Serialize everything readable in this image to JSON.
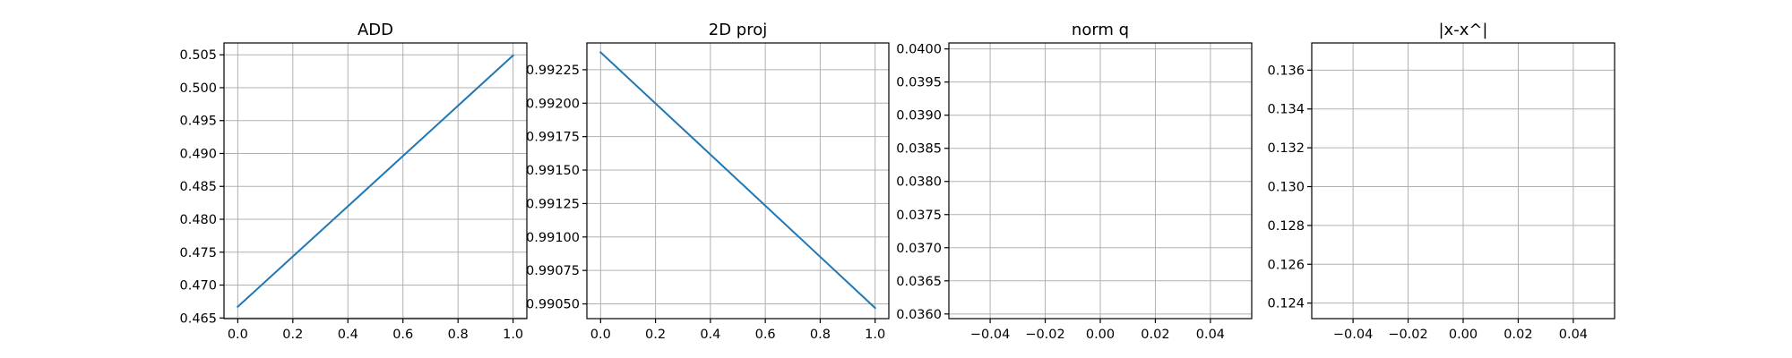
{
  "chart_data": [
    {
      "type": "line",
      "title": "ADD",
      "xlabel": "",
      "ylabel": "",
      "xlim": [
        -0.05,
        1.05
      ],
      "ylim": [
        0.4649,
        0.5068
      ],
      "xticks": [
        "0.0",
        "0.2",
        "0.4",
        "0.6",
        "0.8",
        "1.0"
      ],
      "yticks": [
        "0.465",
        "0.470",
        "0.475",
        "0.480",
        "0.485",
        "0.490",
        "0.495",
        "0.500",
        "0.505"
      ],
      "grid": true,
      "series": [
        {
          "x": [
            0.0,
            1.0
          ],
          "y": [
            0.4667,
            0.5049
          ],
          "color": "#1f77b4"
        }
      ]
    },
    {
      "type": "line",
      "title": "2D proj",
      "xlabel": "",
      "ylabel": "",
      "xlim": [
        -0.05,
        1.05
      ],
      "ylim": [
        0.99039,
        0.99245
      ],
      "xticks": [
        "0.0",
        "0.2",
        "0.4",
        "0.6",
        "0.8",
        "1.0"
      ],
      "yticks": [
        "0.99050",
        "0.99075",
        "0.99100",
        "0.99125",
        "0.99150",
        "0.99175",
        "0.99200",
        "0.99225"
      ],
      "grid": true,
      "series": [
        {
          "x": [
            0.0,
            1.0
          ],
          "y": [
            0.99238,
            0.99047
          ],
          "color": "#1f77b4"
        }
      ]
    },
    {
      "type": "line",
      "title": "norm q",
      "xlabel": "",
      "ylabel": "",
      "xlim": [
        -0.055,
        0.055
      ],
      "ylim": [
        0.03593,
        0.04009
      ],
      "xticks": [
        "−0.04",
        "−0.02",
        "0.00",
        "0.02",
        "0.04"
      ],
      "yticks": [
        "0.0360",
        "0.0365",
        "0.0370",
        "0.0375",
        "0.0380",
        "0.0385",
        "0.0390",
        "0.0395",
        "0.0400"
      ],
      "grid": true,
      "series": []
    },
    {
      "type": "line",
      "title": "|x-x^|",
      "xlabel": "",
      "ylabel": "",
      "xlim": [
        -0.055,
        0.055
      ],
      "ylim": [
        0.1232,
        0.1374
      ],
      "xticks": [
        "−0.04",
        "−0.02",
        "0.00",
        "0.02",
        "0.04"
      ],
      "yticks": [
        "0.124",
        "0.126",
        "0.128",
        "0.130",
        "0.132",
        "0.134",
        "0.136"
      ],
      "grid": true,
      "series": []
    }
  ]
}
